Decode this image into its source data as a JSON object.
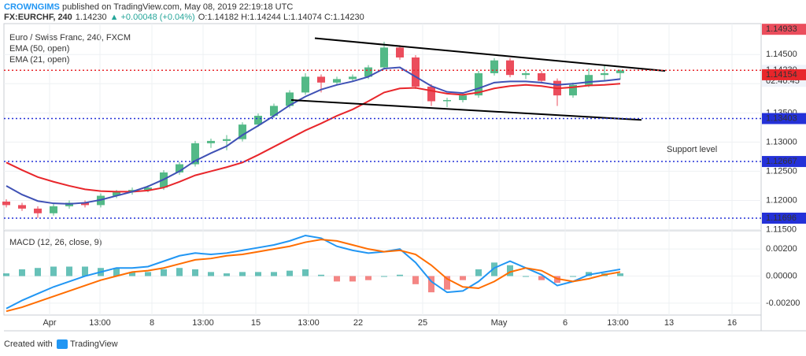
{
  "header": {
    "author": "CROWNGIMS",
    "published": " published on TradingView.com, May 08, 2019 22:19:18 UTC",
    "symbol": "FX:EURCHF, 240",
    "last": "1.14230",
    "change": "▲ +0.00048 (+0.04%)",
    "ohlc": "O:1.14182 H:1.14244 L:1.14074 C:1.14230"
  },
  "footer": {
    "created": "Created with",
    "brand": "TradingView"
  },
  "chart_data": [
    {
      "type": "candlestick",
      "title": "Euro / Swiss Franc, 240, FXCM",
      "xlim": [
        -0.15,
        47.95
      ],
      "xticks": [
        {
          "value": 2.75,
          "label": "Apr"
        },
        {
          "value": 5.95,
          "label": "13:00"
        },
        {
          "value": 9.25,
          "label": "8"
        },
        {
          "value": 12.5,
          "label": "13:00"
        },
        {
          "value": 15.85,
          "label": "15"
        },
        {
          "value": 19.2,
          "label": "13:00"
        },
        {
          "value": 22.35,
          "label": "22"
        },
        {
          "value": 26.45,
          "label": "25"
        },
        {
          "value": 31.3,
          "label": "May"
        },
        {
          "value": 35.5,
          "label": "6"
        },
        {
          "value": 38.85,
          "label": "13:00"
        },
        {
          "value": 42.1,
          "label": "13"
        },
        {
          "value": 46.1,
          "label": "16"
        }
      ],
      "ylim": [
        1.1148,
        1.1503
      ],
      "yticks": [
        {
          "value": 1.115,
          "label": "1.11500"
        },
        {
          "value": 1.12,
          "label": "1.12000"
        },
        {
          "value": 1.125,
          "label": "1.12500"
        },
        {
          "value": 1.13,
          "label": "1.13000"
        },
        {
          "value": 1.135,
          "label": "1.13500"
        },
        {
          "value": 1.14,
          "label": "1.14000"
        },
        {
          "value": 1.145,
          "label": "1.14500"
        }
      ],
      "grid": true,
      "up_color": "#53b987",
      "down_color": "#eb4d5c",
      "open": [
        1.1198,
        1.1192,
        1.1186,
        1.1178,
        1.119,
        1.1196,
        1.1192,
        1.1208,
        1.1214,
        1.1218,
        1.1222,
        1.1248,
        1.1262,
        1.1298,
        1.1302,
        1.1305,
        1.133,
        1.1345,
        1.1362,
        1.1385,
        1.1412,
        1.1402,
        1.1408,
        1.1412,
        1.1428,
        1.1462,
        1.1445,
        1.1395,
        1.137,
        1.1372,
        1.138,
        1.1418,
        1.144,
        1.1415,
        1.1418,
        1.1405,
        1.138,
        1.1398,
        1.1415,
        1.14182
      ],
      "high": [
        1.1202,
        1.1196,
        1.119,
        1.1194,
        1.12,
        1.12,
        1.1212,
        1.1218,
        1.1222,
        1.1226,
        1.1252,
        1.1266,
        1.1302,
        1.1306,
        1.1312,
        1.1334,
        1.1349,
        1.1366,
        1.1389,
        1.1418,
        1.1416,
        1.1412,
        1.1416,
        1.1432,
        1.1472,
        1.1466,
        1.1449,
        1.1399,
        1.1376,
        1.1384,
        1.1422,
        1.1444,
        1.1444,
        1.1422,
        1.1422,
        1.1409,
        1.1402,
        1.1426,
        1.1432,
        1.14244
      ],
      "low": [
        1.1188,
        1.1182,
        1.117,
        1.1174,
        1.1186,
        1.1188,
        1.1188,
        1.1204,
        1.121,
        1.1214,
        1.1218,
        1.1244,
        1.1258,
        1.129,
        1.1286,
        1.1301,
        1.1326,
        1.1341,
        1.1358,
        1.1381,
        1.1385,
        1.1398,
        1.1404,
        1.1408,
        1.1424,
        1.1441,
        1.1391,
        1.1362,
        1.136,
        1.1368,
        1.1376,
        1.1414,
        1.1411,
        1.1408,
        1.1401,
        1.1362,
        1.1376,
        1.1394,
        1.1405,
        1.14074
      ],
      "close": [
        1.1192,
        1.1186,
        1.1178,
        1.119,
        1.1196,
        1.1192,
        1.1208,
        1.1214,
        1.1218,
        1.1222,
        1.1248,
        1.1262,
        1.1298,
        1.1302,
        1.1305,
        1.133,
        1.1345,
        1.1362,
        1.1385,
        1.1412,
        1.1402,
        1.1408,
        1.1412,
        1.1428,
        1.1462,
        1.1445,
        1.1395,
        1.137,
        1.1372,
        1.138,
        1.1418,
        1.144,
        1.1415,
        1.1418,
        1.1405,
        1.138,
        1.1398,
        1.1415,
        1.1418,
        1.1423
      ],
      "series": [
        {
          "name": "EMA (50, open)",
          "color": "#e8262b",
          "values": [
            1.1265,
            1.1252,
            1.124,
            1.1232,
            1.1225,
            1.1219,
            1.1216,
            1.1215,
            1.1215,
            1.1217,
            1.1222,
            1.1232,
            1.1243,
            1.125,
            1.1257,
            1.1265,
            1.1278,
            1.1292,
            1.1306,
            1.132,
            1.1332,
            1.1345,
            1.1356,
            1.137,
            1.1385,
            1.1392,
            1.1393,
            1.1388,
            1.1383,
            1.1381,
            1.1385,
            1.1392,
            1.1396,
            1.1398,
            1.1396,
            1.1392,
            1.1394,
            1.1397,
            1.1398,
            1.14
          ]
        },
        {
          "name": "EMA (21, open)",
          "color": "#3f51b5",
          "values": [
            1.1225,
            1.121,
            1.1199,
            1.1195,
            1.1194,
            1.1196,
            1.1201,
            1.1208,
            1.1215,
            1.1224,
            1.1236,
            1.125,
            1.1268,
            1.1281,
            1.1293,
            1.1312,
            1.1328,
            1.1345,
            1.1363,
            1.1378,
            1.139,
            1.1398,
            1.1404,
            1.1412,
            1.1426,
            1.1428,
            1.1412,
            1.1396,
            1.1386,
            1.1384,
            1.1392,
            1.1402,
            1.1404,
            1.1404,
            1.1402,
            1.1398,
            1.14,
            1.1403,
            1.1405,
            1.1408
          ]
        }
      ],
      "price_labels": [
        {
          "value": 1.14933,
          "label": "1.14933",
          "color": "#eb4d5c",
          "dotted": false
        },
        {
          "value": 1.1423,
          "label": "1.14230",
          "color": "#e8262b",
          "dotted": true
        },
        {
          "value": 1.14154,
          "label": "1.14154",
          "color": "#e8262b",
          "dotted": false
        },
        {
          "value": 1.13403,
          "label": "1.13403",
          "color": "#2431d8",
          "dotted": true
        },
        {
          "value": 1.12667,
          "label": "1.12667",
          "color": "#2431d8",
          "dotted": true
        },
        {
          "value": 1.11696,
          "label": "1.11696",
          "color": "#2431d8",
          "dotted": true
        }
      ],
      "countdown": "02:40:45",
      "trendlines": [
        {
          "x": [
            19.6,
            41.85
          ],
          "y": [
            1.1478,
            1.1422
          ]
        },
        {
          "x": [
            18.1,
            40.35
          ],
          "y": [
            1.1372,
            1.1338
          ]
        }
      ],
      "annotation": {
        "text": "Support level",
        "x": 41.95,
        "y": 1.1287
      }
    },
    {
      "type": "macd",
      "title": "MACD (12, 26, close, 9)",
      "ylim": [
        -0.00288,
        0.00329
      ],
      "yticks": [
        {
          "value": 0.002,
          "label": "0.00200"
        },
        {
          "value": 0,
          "label": "0.00000"
        },
        {
          "value": -0.002,
          "label": "-0.00200"
        }
      ],
      "histogram": [
        0.0002,
        0.0005,
        0.0006,
        0.0007,
        0.0007,
        0.0007,
        0.0006,
        0.0006,
        0.0003,
        0.0003,
        0.0005,
        0.0006,
        0.0005,
        0.0003,
        0.0002,
        0.0003,
        0.0003,
        0.0003,
        0.0004,
        0.0005,
        0.0001,
        -0.0004,
        -0.0004,
        -0.0003,
        0.0,
        0.0001,
        -0.0006,
        -0.0012,
        -0.001,
        -0.0003,
        0.0005,
        0.001,
        0.0008,
        0.0,
        -0.0003,
        -0.0005,
        0.0,
        0.0003,
        0.0002,
        0.0002
      ],
      "up_color": "#26a69a",
      "down_color": "#ef5350",
      "series": [
        {
          "name": "MACD",
          "color": "#2196f3",
          "values": [
            -0.0024,
            -0.0018,
            -0.0013,
            -0.0008,
            -0.0004,
            0.0,
            0.0003,
            0.0006,
            0.0006,
            0.0007,
            0.0011,
            0.0015,
            0.0017,
            0.0016,
            0.0017,
            0.0019,
            0.0021,
            0.0023,
            0.0026,
            0.003,
            0.0028,
            0.0022,
            0.0019,
            0.0017,
            0.0018,
            0.002,
            0.001,
            -0.0004,
            -0.0012,
            -0.0011,
            -0.0004,
            0.0006,
            0.0011,
            0.0006,
            0.0001,
            -0.0007,
            -0.0004,
            0.0001,
            0.0003,
            0.0005
          ]
        },
        {
          "name": "Signal",
          "color": "#ff6d00",
          "values": [
            -0.0026,
            -0.0023,
            -0.0019,
            -0.0015,
            -0.0011,
            -0.0007,
            -0.0003,
            0.0,
            0.0003,
            0.0004,
            0.0006,
            0.0009,
            0.0012,
            0.0013,
            0.0015,
            0.0016,
            0.0018,
            0.002,
            0.0022,
            0.0025,
            0.0027,
            0.0026,
            0.0023,
            0.002,
            0.0018,
            0.0019,
            0.0016,
            0.0008,
            -0.0002,
            -0.0008,
            -0.0009,
            -0.0004,
            0.0003,
            0.0006,
            0.0004,
            -0.0002,
            -0.0004,
            -0.0002,
            0.0001,
            0.0003
          ]
        }
      ]
    }
  ]
}
